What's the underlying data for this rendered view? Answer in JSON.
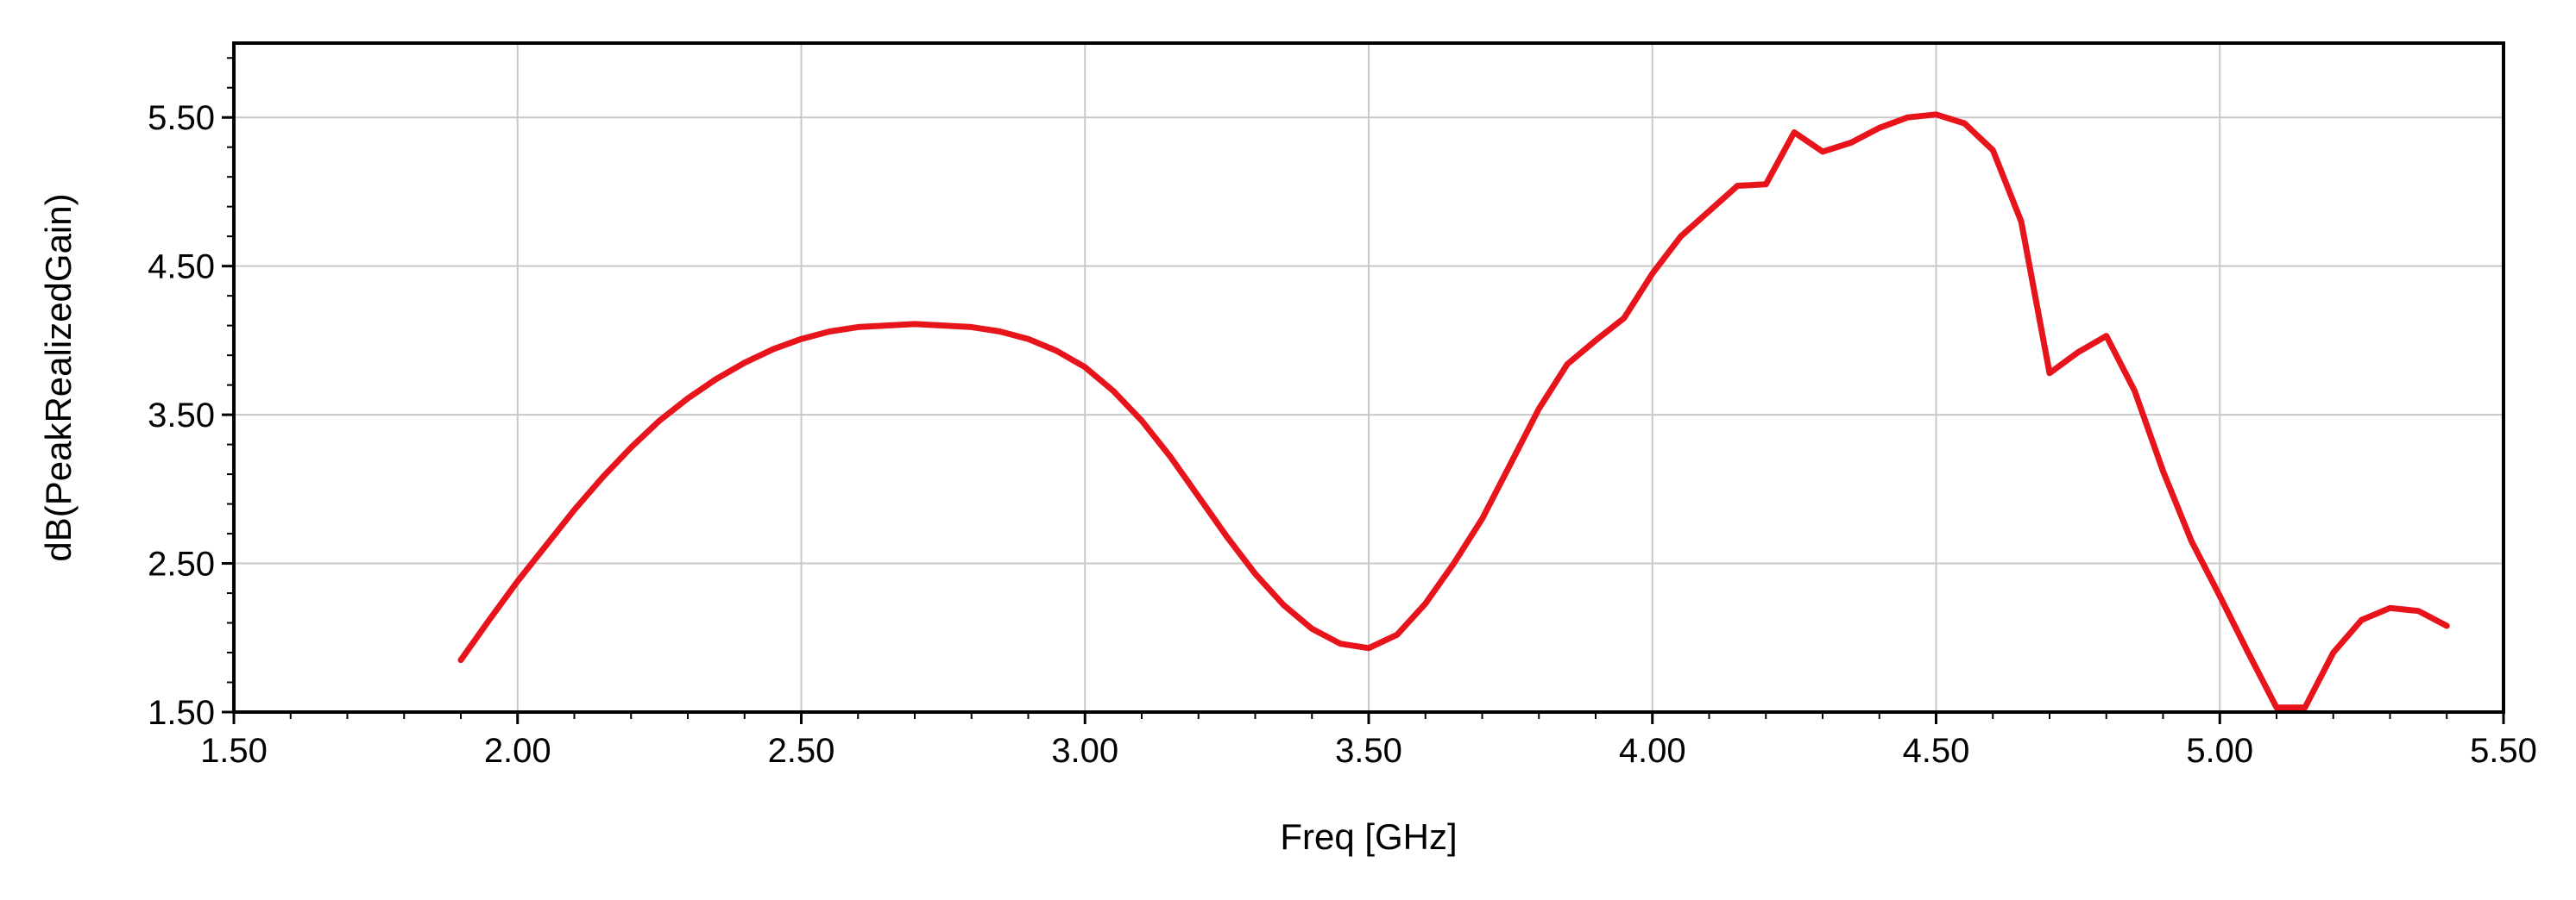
{
  "chart_data": {
    "type": "line",
    "title": "",
    "xlabel": "Freq [GHz]",
    "ylabel": "dB(PeakRealizedGain)",
    "xlim": [
      1.5,
      5.5
    ],
    "ylim": [
      1.5,
      6.0
    ],
    "xticks": [
      1.5,
      2.0,
      2.5,
      3.0,
      3.5,
      4.0,
      4.5,
      5.0,
      5.5
    ],
    "yticks": [
      1.5,
      2.5,
      3.5,
      4.5,
      5.5
    ],
    "xtick_labels": [
      "1.50",
      "2.00",
      "2.50",
      "3.00",
      "3.50",
      "4.00",
      "4.50",
      "5.00",
      "5.50"
    ],
    "ytick_labels": [
      "1.50",
      "2.50",
      "3.50",
      "4.50",
      "5.50"
    ],
    "grid": true,
    "line_color": "#e8141c",
    "series": [
      {
        "x": [
          1.9,
          1.95,
          2.0,
          2.05,
          2.1,
          2.15,
          2.2,
          2.25,
          2.3,
          2.35,
          2.4,
          2.45,
          2.5,
          2.55,
          2.6,
          2.65,
          2.7,
          2.75,
          2.8,
          2.85,
          2.9,
          2.95,
          3.0,
          3.05,
          3.1,
          3.15,
          3.2,
          3.25,
          3.3,
          3.35,
          3.4,
          3.45,
          3.5,
          3.55,
          3.6,
          3.65,
          3.7,
          3.75,
          3.8,
          3.85,
          3.9,
          3.95,
          4.0,
          4.05,
          4.1,
          4.15,
          4.2,
          4.25,
          4.3,
          4.35,
          4.4,
          4.45,
          4.5,
          4.55,
          4.6,
          4.65,
          4.7,
          4.75,
          4.8,
          4.85,
          4.9,
          4.95,
          5.0,
          5.05,
          5.1,
          5.15,
          5.2,
          5.25,
          5.3,
          5.35,
          5.4
        ],
        "values": [
          1.85,
          2.12,
          2.38,
          2.62,
          2.86,
          3.08,
          3.28,
          3.46,
          3.61,
          3.74,
          3.85,
          3.94,
          4.01,
          4.06,
          4.09,
          4.1,
          4.11,
          4.1,
          4.09,
          4.06,
          4.01,
          3.93,
          3.82,
          3.66,
          3.46,
          3.22,
          2.95,
          2.68,
          2.43,
          2.22,
          2.06,
          1.96,
          1.93,
          2.02,
          2.23,
          2.5,
          2.8,
          3.17,
          3.54,
          3.84,
          4.0,
          4.15,
          4.45,
          4.7,
          4.87,
          5.04,
          5.05,
          5.4,
          5.27,
          5.33,
          5.43,
          5.5,
          5.52,
          5.46,
          5.28,
          4.8,
          3.78,
          3.92,
          4.03,
          3.66,
          3.12,
          2.65,
          2.28,
          1.9,
          1.53,
          1.53,
          1.9,
          2.12,
          2.2,
          2.18,
          2.08
        ]
      }
    ]
  }
}
